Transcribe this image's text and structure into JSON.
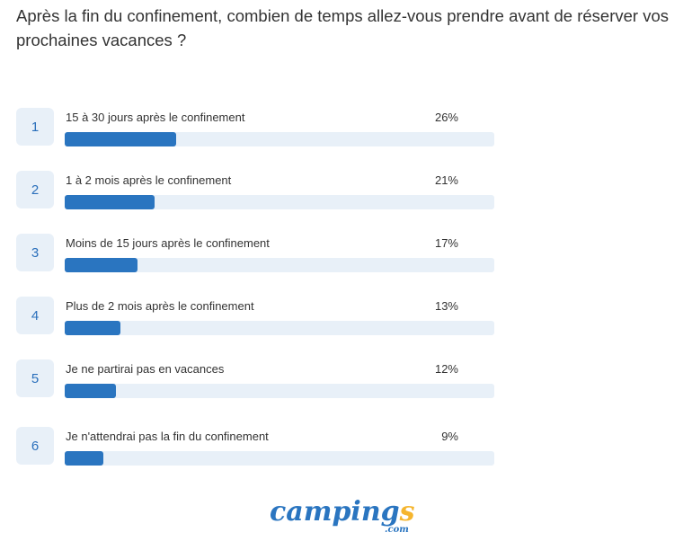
{
  "chart_data": {
    "type": "bar",
    "title": "Après la fin du confinement, combien de temps allez-vous prendre avant de réserver vos prochaines vacances ?",
    "orientation": "horizontal",
    "xlim": [
      0,
      100
    ],
    "ranks": [
      "1",
      "2",
      "3",
      "4",
      "5",
      "6"
    ],
    "categories": [
      "15 à 30 jours après le confinement",
      "1 à 2 mois après le confinement",
      "Moins de 15 jours après le confinement",
      "Plus de 2 mois après le confinement",
      "Je ne partirai pas en vacances",
      "Je n'attendrai pas la fin du confinement"
    ],
    "values": [
      26,
      21,
      17,
      13,
      12,
      9
    ],
    "labels": [
      "26%",
      "21%",
      "17%",
      "13%",
      "12%",
      "9%"
    ],
    "colors": {
      "bar": "#2a75c0",
      "track": "#e8f0f8",
      "rank": "#2a6fbb"
    }
  },
  "logo": {
    "text_main": "camping",
    "text_s": "s",
    "text_com": ".com"
  }
}
